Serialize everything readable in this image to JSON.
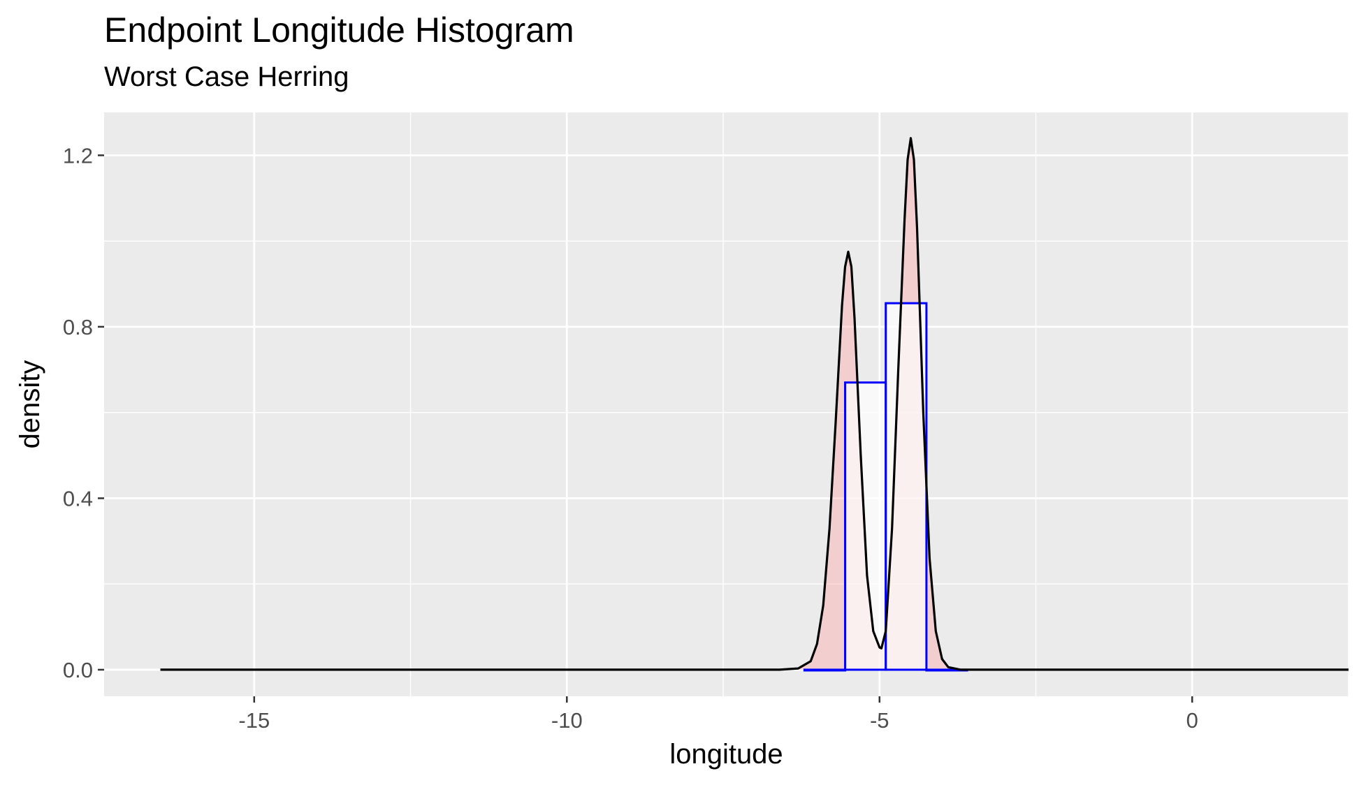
{
  "chart_data": {
    "type": "histogram",
    "title": "Endpoint Longitude Histogram",
    "subtitle": "Worst Case Herring",
    "xlabel": "longitude",
    "ylabel": "density",
    "xlim": [
      -17.4,
      2.5
    ],
    "ylim": [
      -0.062,
      1.3
    ],
    "x_ticks": [
      -15,
      -10,
      -5,
      0
    ],
    "x_tick_labels": [
      "-15",
      "-10",
      "-5",
      "0"
    ],
    "y_ticks": [
      0.0,
      0.4,
      0.8,
      1.2
    ],
    "y_tick_labels": [
      "0.0",
      "0.4",
      "0.8",
      "1.2"
    ],
    "grid": true,
    "legend": "none",
    "histogram": {
      "outline_color": "#0000FF",
      "fill_color": "#FFFFFF",
      "bins": [
        {
          "x0": -6.2,
          "x1": -5.55,
          "density": 0.0
        },
        {
          "x0": -5.55,
          "x1": -4.9,
          "density": 0.67
        },
        {
          "x0": -4.9,
          "x1": -4.25,
          "density": 0.855
        },
        {
          "x0": -4.25,
          "x1": -3.6,
          "density": 0.0
        }
      ]
    },
    "density": {
      "line_color": "#000000",
      "fill_color": "#FF9999",
      "fill_alpha": 0.35,
      "x": [
        -16.5,
        -6.6,
        -6.3,
        -6.1,
        -6.0,
        -5.9,
        -5.8,
        -5.7,
        -5.6,
        -5.55,
        -5.5,
        -5.45,
        -5.4,
        -5.3,
        -5.2,
        -5.1,
        -5.0,
        -4.97,
        -4.9,
        -4.8,
        -4.7,
        -4.6,
        -4.55,
        -4.5,
        -4.45,
        -4.4,
        -4.3,
        -4.2,
        -4.1,
        -4.0,
        -3.9,
        -3.7,
        2.5
      ],
      "y": [
        0.0,
        0.0,
        0.003,
        0.02,
        0.06,
        0.15,
        0.33,
        0.58,
        0.85,
        0.94,
        0.975,
        0.94,
        0.82,
        0.5,
        0.22,
        0.09,
        0.052,
        0.05,
        0.09,
        0.33,
        0.7,
        1.05,
        1.19,
        1.24,
        1.19,
        1.03,
        0.6,
        0.26,
        0.09,
        0.025,
        0.006,
        0.0,
        0.0
      ]
    }
  }
}
